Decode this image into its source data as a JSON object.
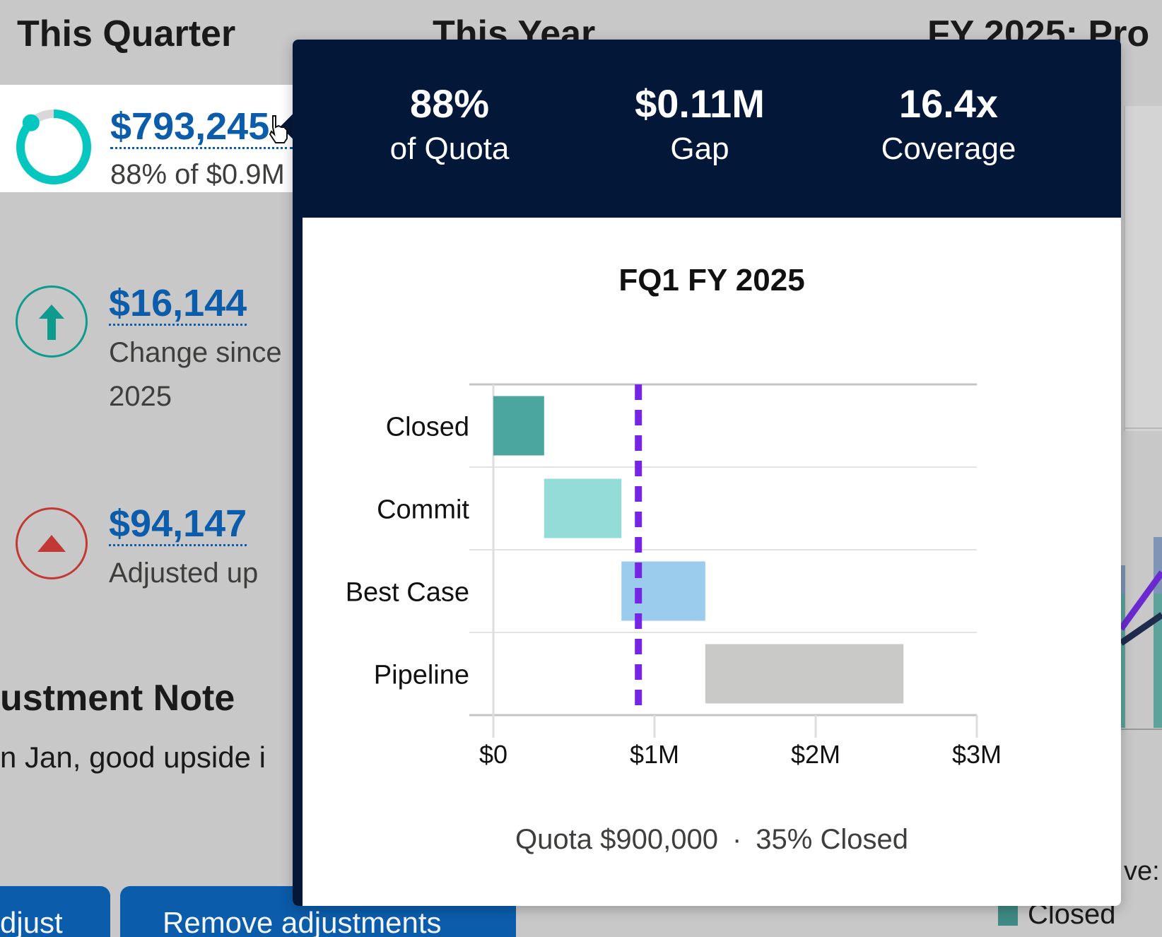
{
  "background": {
    "columns": [
      "This Quarter",
      "This Year",
      "FY 2025: Pro"
    ],
    "quarter": {
      "attainment_amount": "$793,245",
      "attainment_sub": "88% of $0.9M",
      "attainment_progress": 0.88,
      "change_amount": "$16,144",
      "change_sub_line1": "Change since",
      "change_sub_line2": "2025",
      "adjusted_amount": "$94,147",
      "adjusted_sub": "Adjusted up"
    },
    "note": {
      "title": "ustment Note",
      "text": "n Jan, good upside i"
    },
    "buttons": {
      "adjust": "djust",
      "remove": "Remove adjustments"
    },
    "right_chart": {
      "legend_partial": "ve:",
      "legend_closed": "Closed",
      "legend_closed_color": "#3f8a84"
    }
  },
  "popover": {
    "stats": [
      {
        "value": "88%",
        "label": "of Quota"
      },
      {
        "value": "$0.11M",
        "label": "Gap"
      },
      {
        "value": "16.4x",
        "label": "Coverage"
      }
    ],
    "footer": {
      "quota": "Quota $900,000",
      "separator": "·",
      "closed_pct": "35% Closed"
    }
  },
  "chart_data": {
    "type": "bar",
    "subtype": "waterfall-horizontal",
    "title": "FQ1 FY 2025",
    "categories": [
      "Closed",
      "Commit",
      "Best Case",
      "Pipeline"
    ],
    "ranges": [
      {
        "category": "Closed",
        "start": 0,
        "end": 315000,
        "color": "#4ca6a0"
      },
      {
        "category": "Commit",
        "start": 315000,
        "end": 795000,
        "color": "#93dcd8"
      },
      {
        "category": "Best Case",
        "start": 795000,
        "end": 1315000,
        "color": "#9bcbed"
      },
      {
        "category": "Pipeline",
        "start": 1315000,
        "end": 2545000,
        "color": "#c9c9c7"
      }
    ],
    "quota_line": {
      "value": 900000,
      "color": "#7526e3"
    },
    "xlim": [
      0,
      3000000
    ],
    "x_ticks": [
      {
        "value": 0,
        "label": "$0"
      },
      {
        "value": 1000000,
        "label": "$1M"
      },
      {
        "value": 2000000,
        "label": "$2M"
      },
      {
        "value": 3000000,
        "label": "$3M"
      }
    ],
    "grid": true
  }
}
